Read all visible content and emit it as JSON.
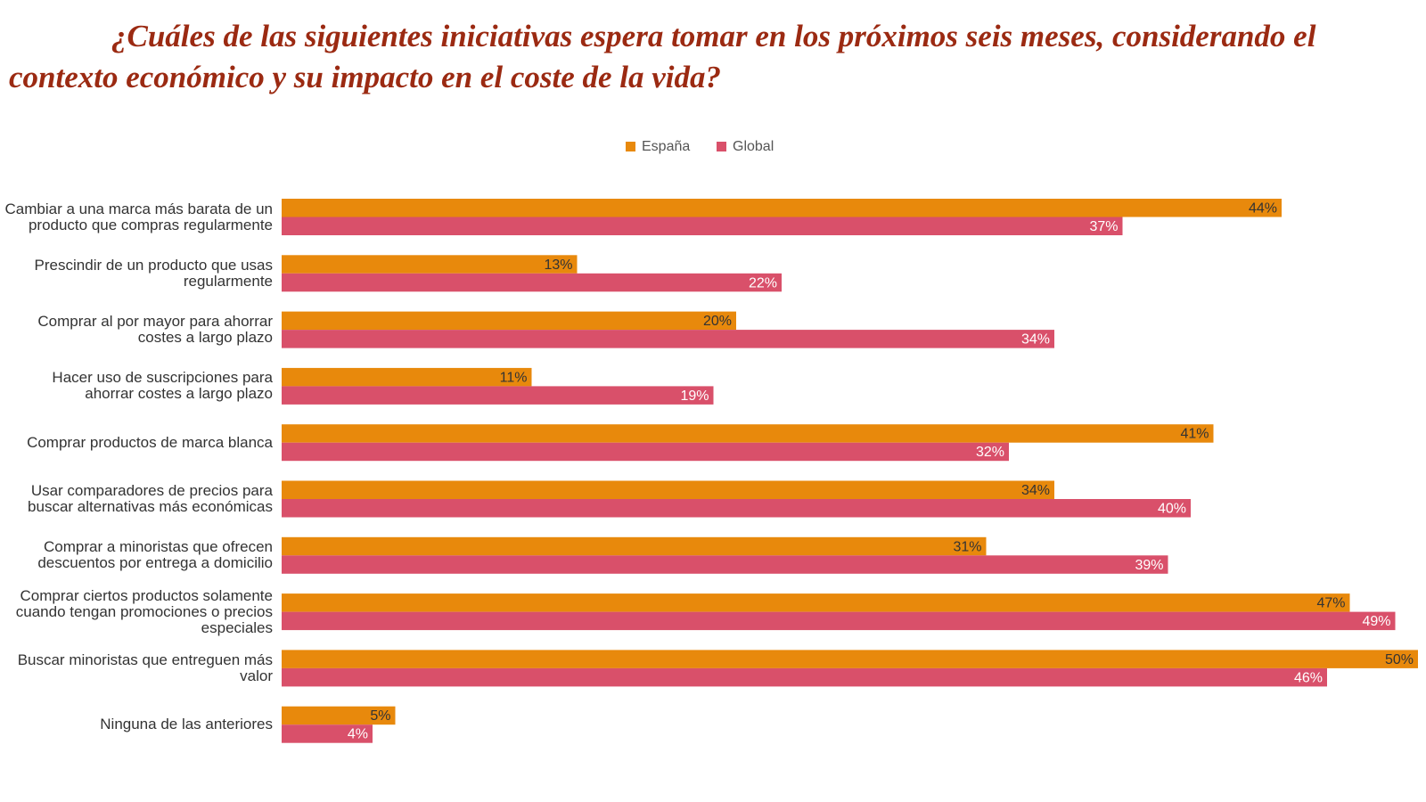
{
  "chart_data": {
    "type": "bar",
    "orientation": "horizontal",
    "title": "¿Cuáles de las siguientes iniciativas espera tomar en los próximos seis meses, considerando el contexto económico y su impacto en el coste de la vida?",
    "categories": [
      "Cambiar a una marca más barata de un producto que compras regularmente",
      "Prescindir de un producto que usas regularmente",
      "Comprar al por mayor para ahorrar costes a largo plazo",
      "Hacer uso de suscripciones para ahorrar costes a largo plazo",
      "Comprar productos de marca blanca",
      "Usar comparadores de precios para buscar alternativas más económicas",
      "Comprar a minoristas que ofrecen descuentos por entrega a domicilio",
      "Comprar ciertos productos solamente cuando tengan promociones o precios especiales",
      "Buscar minoristas que entreguen más valor",
      "Ninguna de las anteriores"
    ],
    "series": [
      {
        "name": "España",
        "color": "#e8890c",
        "values": [
          44,
          13,
          20,
          11,
          41,
          34,
          31,
          47,
          50,
          5
        ],
        "value_labels": [
          "44%",
          "13%",
          "20%",
          "11%",
          "41%",
          "34%",
          "31%",
          "47%",
          "50%",
          "5%"
        ]
      },
      {
        "name": "Global",
        "color": "#d9506a",
        "values": [
          37,
          22,
          34,
          19,
          32,
          40,
          39,
          49,
          46,
          4
        ],
        "value_labels": [
          "37%",
          "22%",
          "34%",
          "19%",
          "32%",
          "40%",
          "39%",
          "49%",
          "46%",
          "4%"
        ]
      }
    ],
    "legend": "top"
  }
}
